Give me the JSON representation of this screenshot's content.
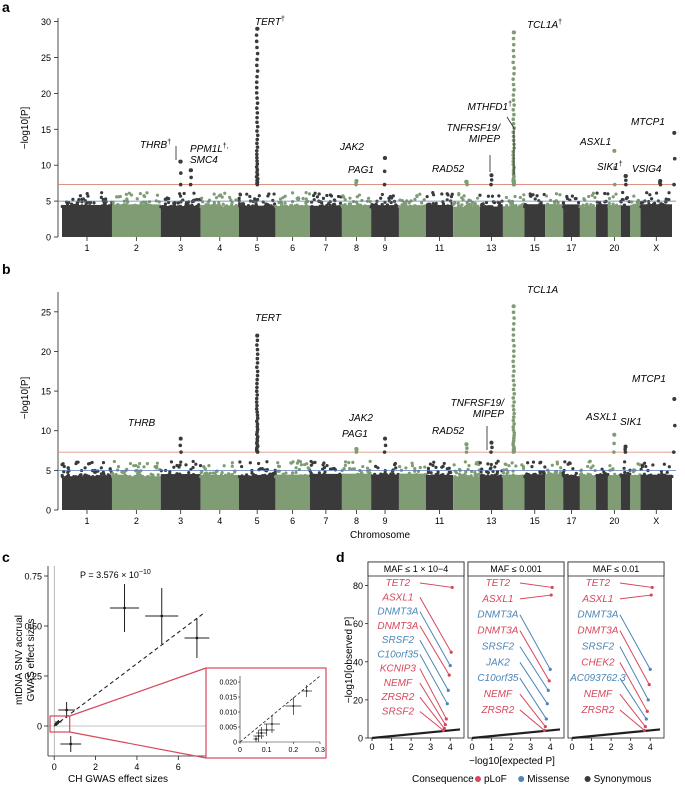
{
  "colors": {
    "dark": "#3a3a3a",
    "green": "#7f9c74",
    "genome_wide_line": "#d9826f",
    "suggestive_line": "#5b7fb0",
    "plof": "#d8475c",
    "missense": "#4d86b8",
    "synonymous": "#3a3a3a",
    "inset_border": "#d8475c"
  },
  "panel_a": {
    "letter": "a",
    "ylabel": "−log10[P]",
    "yticks": [
      "0",
      "5",
      "10",
      "15",
      "20",
      "25",
      "30"
    ],
    "chrom_labels": [
      "1",
      "2",
      "3",
      "4",
      "5",
      "6",
      "7",
      "8",
      "9",
      "11",
      "13",
      "15",
      "17",
      "20",
      "X"
    ],
    "annotations": [
      {
        "gene": "TERT",
        "dagger": "†",
        "chrom": 5,
        "p": 29.0
      },
      {
        "gene": "TCL1A",
        "dagger": "†",
        "chrom": 14,
        "p": 28.5
      },
      {
        "gene": "THRB",
        "dagger": "†",
        "chrom": 3,
        "p": 10.5
      },
      {
        "gene": "PPM1L",
        "dagger": "†,",
        "line2": "SMC4",
        "chrom": 3,
        "p": 9.3
      },
      {
        "gene": "JAK2",
        "chrom": 9,
        "p": 11.0
      },
      {
        "gene": "PAG1",
        "chrom": 8,
        "p": 7.8
      },
      {
        "gene": "RAD52",
        "chrom": 12,
        "p": 7.7
      },
      {
        "gene": "TNFRSF19/",
        "line2": "MIPEP",
        "chrom": 13,
        "p": 8.6
      },
      {
        "gene": "MTHFD1",
        "dagger": "†",
        "chrom": 14,
        "p": 7.8
      },
      {
        "gene": "ASXL1",
        "chrom": 20,
        "p": 12.0
      },
      {
        "gene": "SIK1",
        "dagger": "†",
        "chrom": 21,
        "p": 8.5
      },
      {
        "gene": "VSIG4",
        "chrom": 23,
        "p": 7.8
      },
      {
        "gene": "MTCP1",
        "chrom": 23,
        "p": 14.5
      }
    ]
  },
  "panel_b": {
    "letter": "b",
    "ylabel": "−log10[P]",
    "xlabel": "Chromosome",
    "yticks": [
      "0",
      "5",
      "10",
      "15",
      "20",
      "25"
    ],
    "chrom_labels": [
      "1",
      "2",
      "3",
      "4",
      "5",
      "6",
      "7",
      "8",
      "9",
      "11",
      "13",
      "15",
      "17",
      "20",
      "X"
    ],
    "annotations": [
      {
        "gene": "TERT",
        "chrom": 5,
        "p": 22.0
      },
      {
        "gene": "TCL1A",
        "chrom": 14,
        "p": 25.7
      },
      {
        "gene": "THRB",
        "chrom": 3,
        "p": 9.0
      },
      {
        "gene": "JAK2",
        "chrom": 9,
        "p": 9.0
      },
      {
        "gene": "PAG1",
        "chrom": 8,
        "p": 7.7
      },
      {
        "gene": "RAD52",
        "chrom": 12,
        "p": 8.3
      },
      {
        "gene": "TNFRSF19/",
        "line2": "MIPEP",
        "chrom": 13,
        "p": 8.5
      },
      {
        "gene": "ASXL1",
        "chrom": 20,
        "p": 9.5
      },
      {
        "gene": "SIK1",
        "chrom": 21,
        "p": 8.0
      },
      {
        "gene": "MTCP1",
        "chrom": 23,
        "p": 14.0
      }
    ]
  },
  "panel_c": {
    "letter": "c",
    "ylabel_line1": "mtDNA SNV accrual",
    "ylabel_line2": "GWAS effect sizes",
    "xlabel": "CH GWAS effect sizes",
    "pvalue_label": "P = 3.576 × 10−10",
    "xticks": [
      "0",
      "2",
      "4",
      "6"
    ],
    "yticks": [
      "0",
      "0.25",
      "0.50",
      "0.75"
    ],
    "inset_xticks": [
      "0",
      "0.1",
      "0.2",
      "0.3"
    ],
    "inset_yticks": [
      "0",
      "0.005",
      "0.010",
      "0.015",
      "0.020"
    ]
  },
  "panel_d": {
    "letter": "d",
    "ylabel": "−log10[observed P]",
    "xlabel": "−log10[expected P]",
    "yticks": [
      "0",
      "20",
      "40",
      "60",
      "80"
    ],
    "xticks": [
      "0",
      "1",
      "2",
      "3",
      "4"
    ],
    "facets": [
      {
        "title": "MAF ≤ 1 × 10−4",
        "genes": [
          {
            "name": "TET2",
            "class": "pLoF",
            "obs": 79
          },
          {
            "name": "ASXL1",
            "class": "pLoF",
            "obs": 45
          },
          {
            "name": "DNMT3A",
            "class": "Missense",
            "obs": 38
          },
          {
            "name": "DNMT3A",
            "class": "pLoF",
            "obs": 33
          },
          {
            "name": "SRSF2",
            "class": "Missense",
            "obs": 25
          },
          {
            "name": "C10orf35",
            "class": "Missense",
            "obs": 18
          },
          {
            "name": "KCNIP3",
            "class": "pLoF",
            "obs": 10
          },
          {
            "name": "NEMF",
            "class": "pLoF",
            "obs": 7
          },
          {
            "name": "ZRSR2",
            "class": "pLoF",
            "obs": 5
          },
          {
            "name": "SRSF2",
            "class": "pLoF",
            "obs": 4
          }
        ]
      },
      {
        "title": "MAF ≤ 0.001",
        "genes": [
          {
            "name": "TET2",
            "class": "pLoF",
            "obs": 79
          },
          {
            "name": "ASXL1",
            "class": "pLoF",
            "obs": 75
          },
          {
            "name": "DNMT3A",
            "class": "Missense",
            "obs": 36
          },
          {
            "name": "DNMT3A",
            "class": "pLoF",
            "obs": 30
          },
          {
            "name": "SRSF2",
            "class": "Missense",
            "obs": 25
          },
          {
            "name": "JAK2",
            "class": "Missense",
            "obs": 18
          },
          {
            "name": "C10orf35",
            "class": "Missense",
            "obs": 10
          },
          {
            "name": "NEMF",
            "class": "pLoF",
            "obs": 6
          },
          {
            "name": "ZRSR2",
            "class": "pLoF",
            "obs": 4
          }
        ]
      },
      {
        "title": "MAF ≤ 0.01",
        "genes": [
          {
            "name": "TET2",
            "class": "pLoF",
            "obs": 79
          },
          {
            "name": "ASXL1",
            "class": "pLoF",
            "obs": 75
          },
          {
            "name": "DNMT3A",
            "class": "Missense",
            "obs": 36
          },
          {
            "name": "DNMT3A",
            "class": "pLoF",
            "obs": 28
          },
          {
            "name": "SRSF2",
            "class": "Missense",
            "obs": 20
          },
          {
            "name": "CHEK2",
            "class": "pLoF",
            "obs": 14
          },
          {
            "name": "AC093762.3",
            "class": "Missense",
            "obs": 10
          },
          {
            "name": "NEMF",
            "class": "pLoF",
            "obs": 6
          },
          {
            "name": "ZRSR2",
            "class": "pLoF",
            "obs": 4
          }
        ]
      }
    ],
    "legend": {
      "title": "Consequence",
      "items": [
        {
          "label": "pLoF",
          "color": "#d8475c"
        },
        {
          "label": "Missense",
          "color": "#4d86b8"
        },
        {
          "label": "Synonymous",
          "color": "#3a3a3a"
        }
      ]
    }
  },
  "chart_data": [
    {
      "type": "scatter",
      "title": "",
      "xlabel": "",
      "ylabel": "−log10[P]",
      "ylim": [
        0,
        32
      ],
      "genome_wide_threshold": 7.3,
      "suggestive_threshold": 5.0,
      "x_categories": [
        "1",
        "2",
        "3",
        "4",
        "5",
        "6",
        "7",
        "8",
        "9",
        "11",
        "13",
        "15",
        "17",
        "20",
        "X"
      ],
      "peaks": [
        {
          "label": "TERT",
          "chrom": "5",
          "y": 29.0
        },
        {
          "label": "TCL1A",
          "chrom": "14",
          "y": 28.5
        },
        {
          "label": "MTCP1",
          "chrom": "X",
          "y": 14.5
        },
        {
          "label": "ASXL1",
          "chrom": "20",
          "y": 12.0
        },
        {
          "label": "JAK2",
          "chrom": "9",
          "y": 11.0
        },
        {
          "label": "THRB",
          "chrom": "3",
          "y": 10.5
        },
        {
          "label": "PPM1L, SMC4",
          "chrom": "3",
          "y": 9.3
        },
        {
          "label": "TNFRSF19/MIPEP",
          "chrom": "13",
          "y": 8.6
        },
        {
          "label": "SIK1",
          "chrom": "21",
          "y": 8.5
        },
        {
          "label": "PAG1",
          "chrom": "8",
          "y": 7.8
        },
        {
          "label": "MTHFD1",
          "chrom": "14",
          "y": 7.8
        },
        {
          "label": "RAD52",
          "chrom": "12",
          "y": 7.7
        },
        {
          "label": "VSIG4",
          "chrom": "X",
          "y": 7.8
        }
      ]
    },
    {
      "type": "scatter",
      "title": "",
      "xlabel": "Chromosome",
      "ylabel": "−log10[P]",
      "ylim": [
        0,
        27
      ],
      "genome_wide_threshold": 7.3,
      "suggestive_threshold": 5.0,
      "x_categories": [
        "1",
        "2",
        "3",
        "4",
        "5",
        "6",
        "7",
        "8",
        "9",
        "11",
        "13",
        "15",
        "17",
        "20",
        "X"
      ],
      "peaks": [
        {
          "label": "TCL1A",
          "chrom": "14",
          "y": 25.7
        },
        {
          "label": "TERT",
          "chrom": "5",
          "y": 22.0
        },
        {
          "label": "MTCP1",
          "chrom": "X",
          "y": 14.0
        },
        {
          "label": "ASXL1",
          "chrom": "20",
          "y": 9.5
        },
        {
          "label": "THRB",
          "chrom": "3",
          "y": 9.0
        },
        {
          "label": "JAK2",
          "chrom": "9",
          "y": 9.0
        },
        {
          "label": "TNFRSF19/MIPEP",
          "chrom": "13",
          "y": 8.5
        },
        {
          "label": "RAD52",
          "chrom": "12",
          "y": 8.3
        },
        {
          "label": "SIK1",
          "chrom": "21",
          "y": 8.0
        },
        {
          "label": "PAG1",
          "chrom": "8",
          "y": 7.7
        }
      ]
    },
    {
      "type": "scatter",
      "title": "",
      "xlabel": "CH GWAS effect sizes",
      "ylabel": "mtDNA SNV accrual GWAS effect sizes",
      "xlim": [
        -0.3,
        8.5
      ],
      "ylim": [
        -0.15,
        0.8
      ],
      "points": [
        {
          "x": 3.4,
          "y": 0.59,
          "xerr": 0.7,
          "yerr": 0.12
        },
        {
          "x": 5.2,
          "y": 0.55,
          "xerr": 0.8,
          "yerr": 0.14
        },
        {
          "x": 6.9,
          "y": 0.44,
          "xerr": 0.6,
          "yerr": 0.1
        },
        {
          "x": 0.6,
          "y": 0.08,
          "xerr": 0.4,
          "yerr": 0.04
        },
        {
          "x": 0.8,
          "y": -0.09,
          "xerr": 0.5,
          "yerr": 0.04
        },
        {
          "x": 0.2,
          "y": 0.02,
          "xerr": 0.15,
          "yerr": 0.01
        },
        {
          "x": 0.1,
          "y": 0.01,
          "xerr": 0.1,
          "yerr": 0.01
        }
      ],
      "regression": {
        "slope": 0.078,
        "intercept": 0.0
      },
      "inset": {
        "xlim": [
          0,
          0.3
        ],
        "ylim": [
          0,
          0.022
        ],
        "points": [
          {
            "x": 0.25,
            "y": 0.017,
            "xerr": 0.02,
            "yerr": 0.002
          },
          {
            "x": 0.2,
            "y": 0.012,
            "xerr": 0.03,
            "yerr": 0.003
          },
          {
            "x": 0.12,
            "y": 0.006,
            "xerr": 0.03,
            "yerr": 0.003
          },
          {
            "x": 0.1,
            "y": 0.004,
            "xerr": 0.03,
            "yerr": 0.002
          },
          {
            "x": 0.08,
            "y": 0.003,
            "xerr": 0.02,
            "yerr": 0.002
          },
          {
            "x": 0.07,
            "y": 0.002,
            "xerr": 0.02,
            "yerr": 0.002
          },
          {
            "x": 0.06,
            "y": 0.001,
            "xerr": 0.01,
            "yerr": 0.001
          }
        ]
      }
    },
    {
      "type": "line",
      "title": "",
      "xlabel": "−log10[expected P]",
      "ylabel": "−log10[observed P]",
      "xlim": [
        0,
        4.5
      ],
      "ylim": [
        0,
        85
      ],
      "series": [
        {
          "name": "MAF ≤ 1 × 10−4"
        },
        {
          "name": "MAF ≤ 0.001"
        },
        {
          "name": "MAF ≤ 0.01"
        }
      ]
    }
  ]
}
